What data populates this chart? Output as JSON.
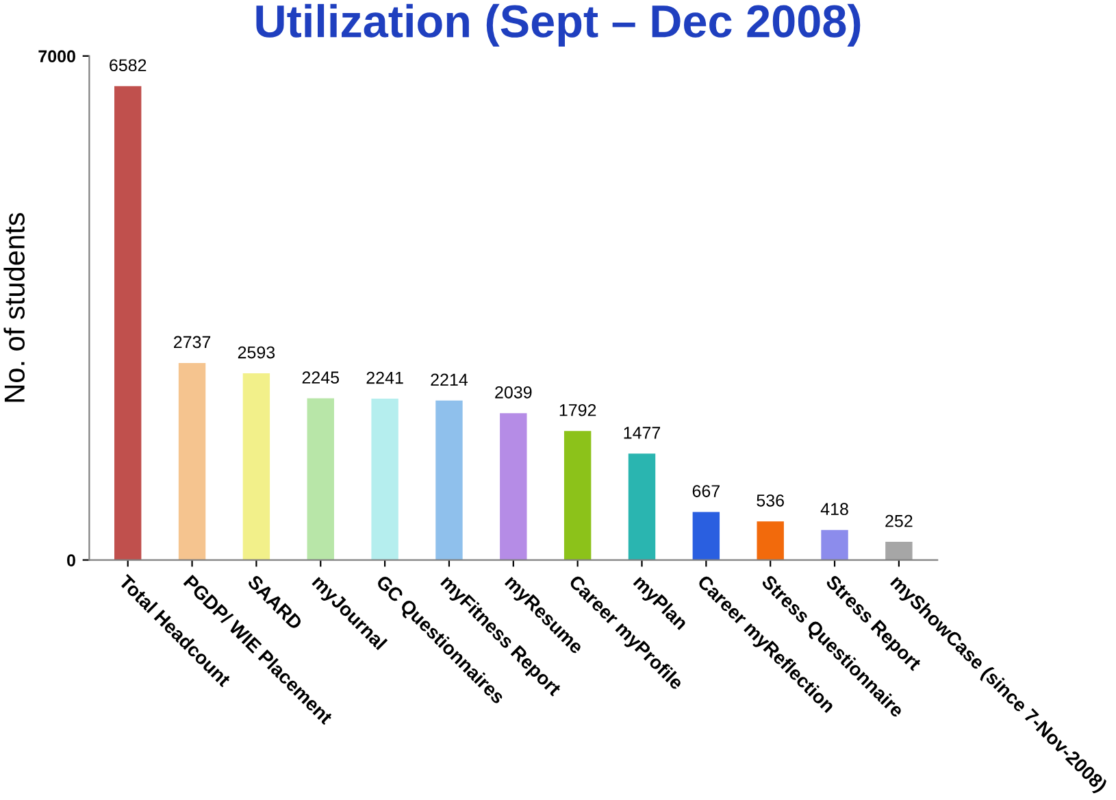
{
  "chart_data": {
    "type": "bar",
    "title": "Utilization (Sept – Dec 2008)",
    "ylabel": "No. of students",
    "categories": [
      "Total Headcount",
      "PGDP/ WIE Placement",
      "SAARD",
      "myJournal",
      "GC Questionnaires",
      "myFitness Report",
      "myResume",
      "Career myProfile",
      "myPlan",
      "Career myReflection",
      "Stress Questionnaire",
      "Stress Report",
      "myShowCase (since 7-Nov-2008)"
    ],
    "values": [
      6582,
      2737,
      2593,
      2245,
      2241,
      2214,
      2039,
      1792,
      1477,
      667,
      536,
      418,
      252
    ],
    "colors": [
      "#c0504d",
      "#f5c48f",
      "#f2f08a",
      "#b8e6a8",
      "#b5eeee",
      "#8fc0ec",
      "#b58ce6",
      "#8cc21a",
      "#2ab5b0",
      "#2a5fe0",
      "#f26a0c",
      "#8c8cec",
      "#a6a6a6"
    ],
    "ylim": [
      0,
      7000
    ],
    "yticks": [
      0,
      7000
    ],
    "data_labels": true,
    "grid": false,
    "legend": false
  }
}
